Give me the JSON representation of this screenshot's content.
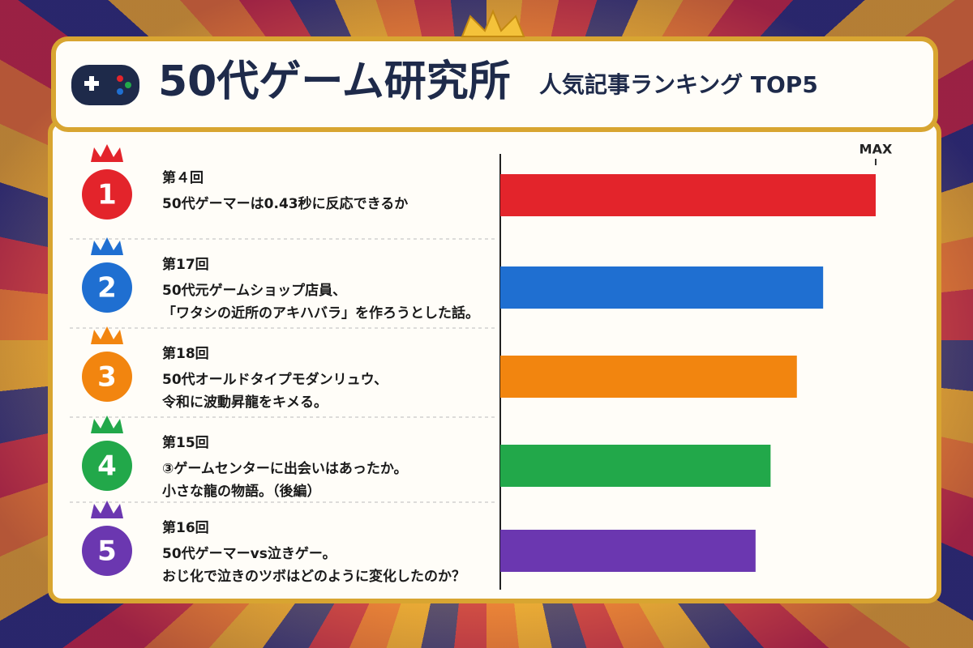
{
  "chart_data": {
    "type": "bar",
    "orientation": "horizontal",
    "title": "50代ゲーム研究所",
    "subtitle": "人気記事ランキング TOP5",
    "categories": [
      "1",
      "2",
      "3",
      "4",
      "5"
    ],
    "episodes": [
      "第４回",
      "第17回",
      "第18回",
      "第15回",
      "第16回"
    ],
    "titles": [
      [
        "50代ゲーマーは0.43秒に反応できるか"
      ],
      [
        "50代元ゲームショップ店員、",
        "「ワタシの近所のアキハバラ」を作ろうとした話。"
      ],
      [
        "50代オールドタイプモダンリュウ、",
        "令和に波動昇龍をキメる。"
      ],
      [
        "③ゲームセンターに出会いはあったか。",
        "小さな龍の物語。（後編）"
      ],
      [
        "50代ゲーマーvs泣きゲー。",
        "おじ化で泣きのツボはどのように変化したのか？"
      ]
    ],
    "values": [
      100,
      86,
      79,
      72,
      68
    ],
    "colors": [
      "#e3242b",
      "#1f6fd1",
      "#f2850f",
      "#22a84a",
      "#6b37b0"
    ],
    "xlim": [
      0,
      100
    ],
    "xticks": [
      {
        "value": 100,
        "label": "MAX"
      }
    ]
  }
}
